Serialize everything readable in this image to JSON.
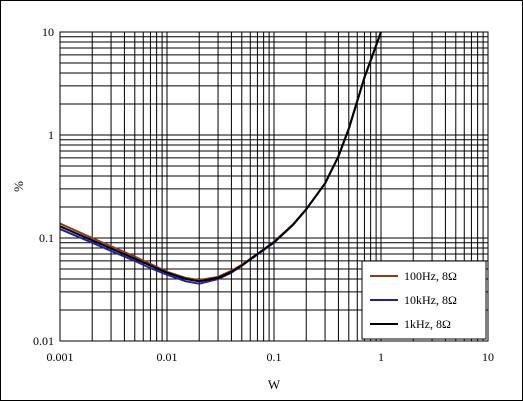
{
  "chart_data": {
    "type": "line",
    "title": "",
    "xlabel": "W",
    "ylabel": "%",
    "xscale": "log",
    "yscale": "log",
    "xlim": [
      0.001,
      10
    ],
    "ylim": [
      0.01,
      10
    ],
    "grid": true,
    "legend_position": "bottom-right",
    "x_ticks": [
      "0.001",
      "0.01",
      "0.1",
      "1",
      "10"
    ],
    "y_ticks": [
      "0.01",
      "0.1",
      "1",
      "10"
    ],
    "series": [
      {
        "name": "100Hz, 8Ω",
        "color": "#8B3A1A",
        "x": [
          0.001,
          0.002,
          0.003,
          0.005,
          0.007,
          0.01,
          0.015,
          0.02,
          0.03,
          0.04,
          0.05,
          0.07,
          0.1,
          0.15,
          0.2,
          0.3,
          0.4,
          0.5,
          0.7,
          1.0
        ],
        "y": [
          0.138,
          0.1,
          0.083,
          0.066,
          0.056,
          0.047,
          0.041,
          0.039,
          0.042,
          0.048,
          0.055,
          0.07,
          0.092,
          0.135,
          0.19,
          0.34,
          0.62,
          1.15,
          3.6,
          10
        ]
      },
      {
        "name": "10kHz, 8Ω",
        "color": "#1F1FA8",
        "x": [
          0.001,
          0.002,
          0.003,
          0.005,
          0.007,
          0.01,
          0.015,
          0.02,
          0.03,
          0.04,
          0.05,
          0.07,
          0.1,
          0.15,
          0.2,
          0.3,
          0.4,
          0.5,
          0.7,
          1.0
        ],
        "y": [
          0.122,
          0.09,
          0.075,
          0.06,
          0.051,
          0.044,
          0.038,
          0.036,
          0.04,
          0.046,
          0.054,
          0.069,
          0.09,
          0.133,
          0.19,
          0.34,
          0.62,
          1.15,
          3.6,
          10
        ]
      },
      {
        "name": "1kHz, 8Ω",
        "color": "#000000",
        "x": [
          0.001,
          0.002,
          0.003,
          0.005,
          0.007,
          0.01,
          0.015,
          0.02,
          0.03,
          0.04,
          0.05,
          0.07,
          0.1,
          0.15,
          0.2,
          0.3,
          0.4,
          0.5,
          0.7,
          1.0
        ],
        "y": [
          0.13,
          0.095,
          0.079,
          0.063,
          0.054,
          0.046,
          0.04,
          0.038,
          0.041,
          0.047,
          0.054,
          0.07,
          0.091,
          0.134,
          0.19,
          0.34,
          0.62,
          1.15,
          3.6,
          10
        ]
      }
    ]
  }
}
